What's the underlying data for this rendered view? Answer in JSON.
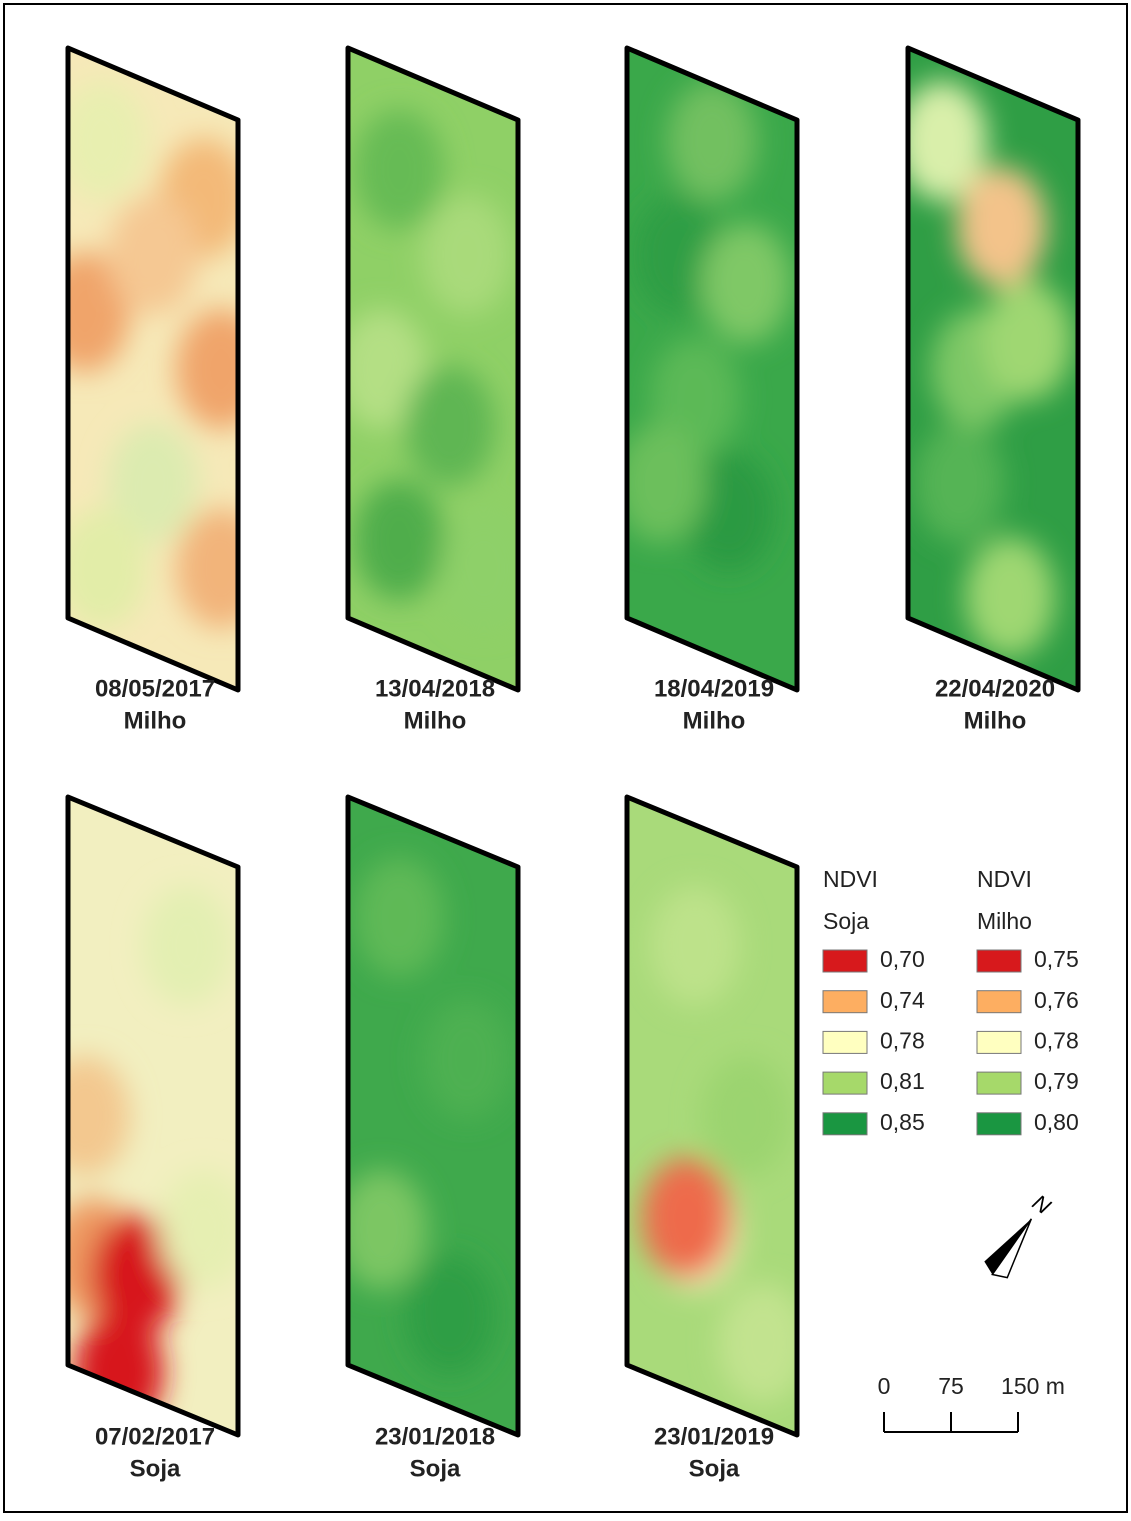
{
  "panels": [
    {
      "date": "08/05/2017",
      "crop": "Milho"
    },
    {
      "date": "13/04/2018",
      "crop": "Milho"
    },
    {
      "date": "18/04/2019",
      "crop": "Milho"
    },
    {
      "date": "22/04/2020",
      "crop": "Milho"
    },
    {
      "date": "07/02/2017",
      "crop": "Soja"
    },
    {
      "date": "23/01/2018",
      "crop": "Soja"
    },
    {
      "date": "23/01/2019",
      "crop": "Soja"
    }
  ],
  "legend": {
    "columns": [
      {
        "title": "NDVI",
        "subtitle": "Soja",
        "items": [
          {
            "label": "0,70",
            "color": "#d7191c"
          },
          {
            "label": "0,74",
            "color": "#fdae61"
          },
          {
            "label": "0,78",
            "color": "#ffffc0"
          },
          {
            "label": "0,81",
            "color": "#a6d96a"
          },
          {
            "label": "0,85",
            "color": "#1a9641"
          }
        ]
      },
      {
        "title": "NDVI",
        "subtitle": "Milho",
        "items": [
          {
            "label": "0,75",
            "color": "#d7191c"
          },
          {
            "label": "0,76",
            "color": "#fdae61"
          },
          {
            "label": "0,78",
            "color": "#ffffc0"
          },
          {
            "label": "0,79",
            "color": "#a6d96a"
          },
          {
            "label": "0,80",
            "color": "#1a9641"
          }
        ]
      }
    ]
  },
  "scale_bar": {
    "labels": [
      "0",
      "75",
      "150 m"
    ]
  },
  "north_arrow": {
    "label": "N"
  }
}
